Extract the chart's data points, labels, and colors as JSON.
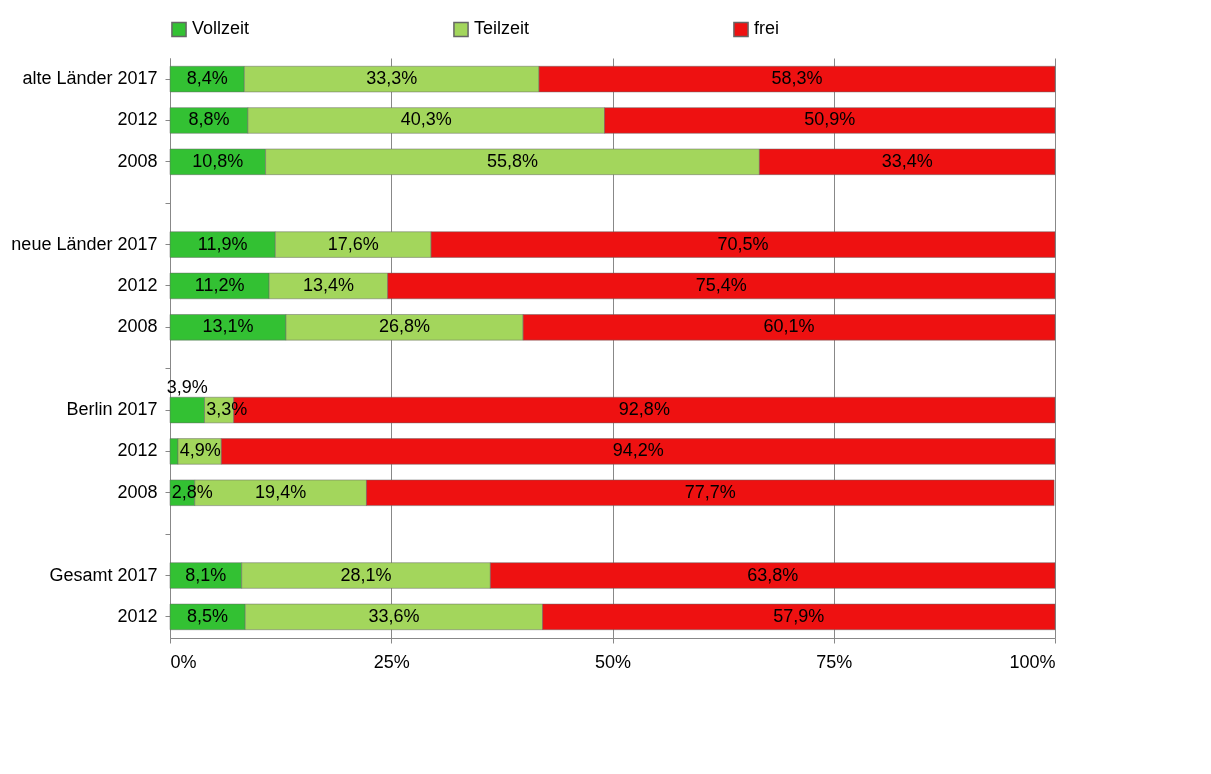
{
  "chart_data": {
    "type": "bar",
    "orientation": "horizontal",
    "stacked": true,
    "categories": [
      "alte Länder 2017",
      "2012",
      "2008",
      null,
      "neue Länder 2017",
      "2012",
      "2008",
      null,
      "Berlin 2017",
      "2012",
      "2008",
      null,
      "Gesamt 2017",
      "2012"
    ],
    "series": [
      {
        "name": "Vollzeit",
        "color": "#33c133",
        "values": [
          8.4,
          8.8,
          10.8,
          null,
          11.9,
          11.2,
          13.1,
          null,
          3.9,
          0.9,
          2.8,
          null,
          8.1,
          8.5
        ],
        "value_labels": [
          "8,4%",
          "8,8%",
          "10,8%",
          null,
          "11,9%",
          "11,2%",
          "13,1%",
          null,
          "3,9%",
          null,
          "2,8%",
          null,
          "8,1%",
          "8,5%"
        ]
      },
      {
        "name": "Teilzeit",
        "color": "#a3d65c",
        "values": [
          33.3,
          40.3,
          55.8,
          null,
          17.6,
          13.4,
          26.8,
          null,
          3.3,
          4.9,
          19.4,
          null,
          28.1,
          33.6
        ],
        "value_labels": [
          "33,3%",
          "40,3%",
          "55,8%",
          null,
          "17,6%",
          "13,4%",
          "26,8%",
          null,
          "3,3%",
          "4,9%",
          "19,4%",
          null,
          "28,1%",
          "33,6%"
        ]
      },
      {
        "name": "frei",
        "color": "#ee1111",
        "values": [
          58.3,
          50.9,
          33.4,
          null,
          70.5,
          75.4,
          60.1,
          null,
          92.8,
          94.2,
          77.7,
          null,
          63.8,
          57.9
        ],
        "value_labels": [
          "58,3%",
          "50,9%",
          "33,4%",
          null,
          "70,5%",
          "75,4%",
          "60,1%",
          null,
          "92,8%",
          "94,2%",
          "77,7%",
          null,
          "63,8%",
          "57,9%"
        ]
      }
    ],
    "xlim": [
      0,
      100
    ],
    "xticks": [
      {
        "value": 0,
        "label": "0%"
      },
      {
        "value": 25,
        "label": "25%"
      },
      {
        "value": 50,
        "label": "50%"
      },
      {
        "value": 75,
        "label": "75%"
      },
      {
        "value": 100,
        "label": "100%"
      }
    ],
    "grid": "x",
    "legend": "top"
  }
}
